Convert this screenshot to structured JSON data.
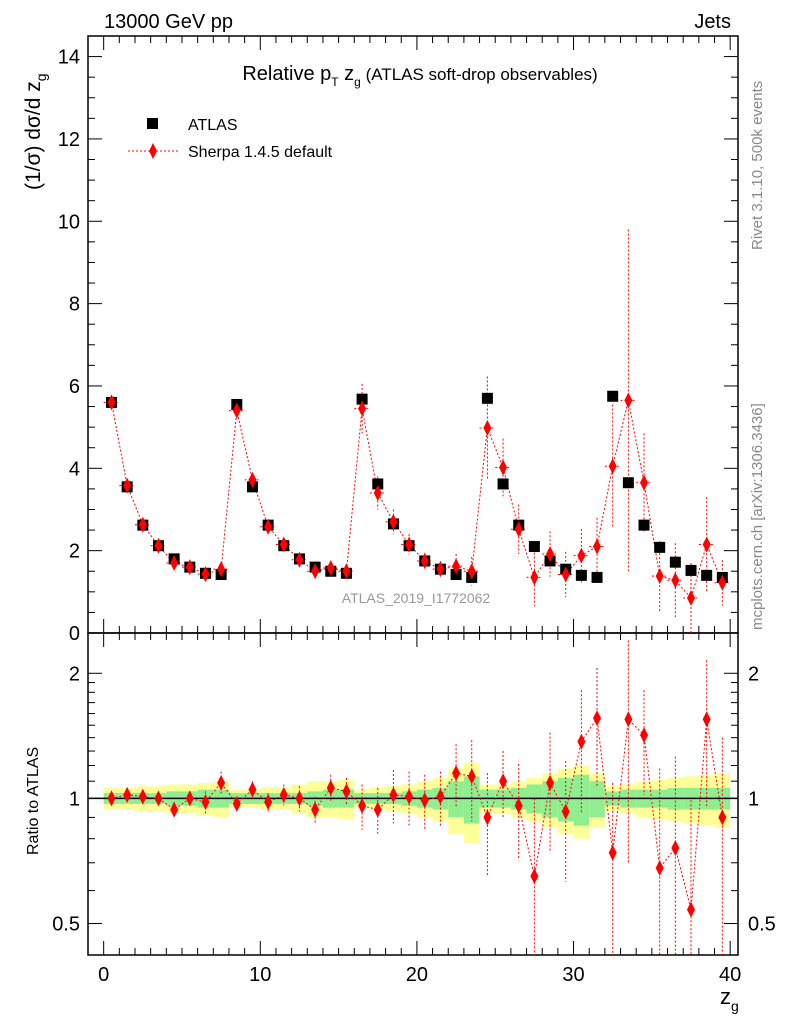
{
  "header": {
    "left": "13000 GeV pp",
    "right": "Jets"
  },
  "side": {
    "rivet": "Rivet 3.1.10,  500k events",
    "mcplots": "mcplots.cern.ch [arXiv:1306.3436]"
  },
  "watermark": "ATLAS_2019_I1772062",
  "colors": {
    "data": "#000000",
    "mc": "#ff0000",
    "band_inner": "#90ee90",
    "band_outer": "#ffff99"
  },
  "chart_data": [
    {
      "type": "scatter",
      "title": "Relative p_T z_g (ATLAS soft-drop observables)",
      "title_parts": {
        "pre": "Relative p",
        "sub1": "T",
        "mid": " z",
        "sub2": "g",
        "post": " (ATLAS soft-drop observables)"
      },
      "ylabel": "(1/σ) dσ/d z_g",
      "ylabel_parts": {
        "main": "(1/σ) dσ/d z",
        "sub": "g"
      },
      "xlim": [
        -1,
        40.5
      ],
      "ylim": [
        0,
        14.5
      ],
      "yticks": [
        "0",
        "2",
        "4",
        "6",
        "8",
        "10",
        "12",
        "14"
      ],
      "legend": [
        "ATLAS",
        "Sherpa 1.4.5 default"
      ],
      "legend_position": "top-left",
      "x": [
        0.5,
        1.5,
        2.5,
        3.5,
        4.5,
        5.5,
        6.5,
        7.5,
        8.5,
        9.5,
        10.5,
        11.5,
        12.5,
        13.5,
        14.5,
        15.5,
        16.5,
        17.5,
        18.5,
        19.5,
        20.5,
        21.5,
        22.5,
        23.5,
        24.5,
        25.5,
        26.5,
        27.5,
        28.5,
        29.5,
        30.5,
        31.5,
        32.5,
        33.5,
        34.5,
        35.5,
        36.5,
        37.5,
        38.5,
        39.5
      ],
      "series": [
        {
          "name": "ATLAS",
          "values": [
            5.6,
            3.55,
            2.62,
            2.12,
            1.8,
            1.6,
            1.45,
            1.42,
            5.55,
            3.55,
            2.62,
            2.12,
            1.8,
            1.6,
            1.5,
            1.45,
            5.68,
            3.62,
            2.65,
            2.12,
            1.75,
            1.55,
            1.42,
            1.35,
            5.7,
            3.62,
            2.62,
            2.1,
            1.75,
            1.55,
            1.4,
            1.35,
            5.75,
            3.65,
            2.62,
            2.08,
            1.72,
            1.52,
            1.4,
            1.35
          ]
        },
        {
          "name": "Sherpa 1.4.5 default",
          "values": [
            5.6,
            3.58,
            2.63,
            2.12,
            1.7,
            1.6,
            1.43,
            1.55,
            5.4,
            3.72,
            2.58,
            2.15,
            1.78,
            1.5,
            1.58,
            1.5,
            5.45,
            3.4,
            2.7,
            2.15,
            1.75,
            1.55,
            1.62,
            1.5,
            4.98,
            4.02,
            2.52,
            1.35,
            1.92,
            1.42,
            1.88,
            2.1,
            4.05,
            5.65,
            3.65,
            1.38,
            1.28,
            0.85,
            2.15,
            1.22
          ],
          "errors": [
            0.05,
            0.05,
            0.05,
            0.05,
            0.08,
            0.08,
            0.1,
            0.12,
            0.15,
            0.15,
            0.1,
            0.1,
            0.1,
            0.1,
            0.12,
            0.12,
            0.6,
            0.4,
            0.3,
            0.25,
            0.2,
            0.2,
            0.3,
            0.35,
            1.25,
            0.7,
            0.6,
            0.7,
            0.55,
            0.55,
            0.65,
            0.7,
            1.5,
            4.15,
            1.2,
            0.85,
            0.9,
            0.85,
            1.15,
            0.55
          ]
        }
      ]
    },
    {
      "type": "scatter",
      "ylabel": "Ratio to ATLAS",
      "xlabel": "z_g",
      "xlabel_parts": {
        "main": "z",
        "sub": "g"
      },
      "xlim": [
        -1,
        40.5
      ],
      "ylim": [
        0.42,
        2.5
      ],
      "yscale": "log",
      "yticks": [
        "0.5",
        "1",
        "2"
      ],
      "xticks": [
        "0",
        "10",
        "20",
        "30",
        "40"
      ],
      "x": [
        0.5,
        1.5,
        2.5,
        3.5,
        4.5,
        5.5,
        6.5,
        7.5,
        8.5,
        9.5,
        10.5,
        11.5,
        12.5,
        13.5,
        14.5,
        15.5,
        16.5,
        17.5,
        18.5,
        19.5,
        20.5,
        21.5,
        22.5,
        23.5,
        24.5,
        25.5,
        26.5,
        27.5,
        28.5,
        29.5,
        30.5,
        31.5,
        32.5,
        33.5,
        34.5,
        35.5,
        36.5,
        37.5,
        38.5,
        39.5
      ],
      "ratio": [
        1.0,
        1.02,
        1.01,
        1.0,
        0.94,
        1.0,
        0.98,
        1.09,
        0.97,
        1.05,
        0.98,
        1.02,
        1.0,
        0.94,
        1.06,
        1.04,
        0.96,
        0.94,
        1.02,
        1.01,
        0.99,
        1.01,
        1.15,
        1.13,
        0.9,
        1.1,
        0.96,
        0.65,
        1.09,
        0.93,
        1.37,
        1.56,
        0.74,
        1.55,
        1.42,
        0.68,
        0.76,
        0.54,
        1.55,
        0.9
      ],
      "ratio_err": [
        0.02,
        0.02,
        0.02,
        0.02,
        0.04,
        0.04,
        0.06,
        0.07,
        0.04,
        0.05,
        0.05,
        0.06,
        0.07,
        0.07,
        0.08,
        0.08,
        0.12,
        0.12,
        0.15,
        0.15,
        0.15,
        0.15,
        0.2,
        0.25,
        0.25,
        0.2,
        0.25,
        0.35,
        0.35,
        0.3,
        0.45,
        0.5,
        0.35,
        0.85,
        0.4,
        0.5,
        0.5,
        0.45,
        0.6,
        0.5
      ],
      "band_inner": [
        0.03,
        0.03,
        0.03,
        0.03,
        0.04,
        0.04,
        0.05,
        0.05,
        0.03,
        0.03,
        0.03,
        0.03,
        0.03,
        0.04,
        0.05,
        0.05,
        0.03,
        0.03,
        0.03,
        0.04,
        0.05,
        0.06,
        0.1,
        0.13,
        0.05,
        0.05,
        0.06,
        0.08,
        0.1,
        0.12,
        0.14,
        0.1,
        0.04,
        0.05,
        0.05,
        0.05,
        0.06,
        0.06,
        0.06,
        0.06
      ],
      "band_outer": [
        0.06,
        0.06,
        0.07,
        0.07,
        0.08,
        0.08,
        0.09,
        0.1,
        0.05,
        0.05,
        0.06,
        0.06,
        0.08,
        0.1,
        0.1,
        0.11,
        0.05,
        0.06,
        0.07,
        0.08,
        0.1,
        0.12,
        0.18,
        0.22,
        0.08,
        0.08,
        0.1,
        0.12,
        0.15,
        0.18,
        0.2,
        0.15,
        0.07,
        0.08,
        0.1,
        0.11,
        0.12,
        0.13,
        0.14,
        0.15
      ]
    }
  ]
}
